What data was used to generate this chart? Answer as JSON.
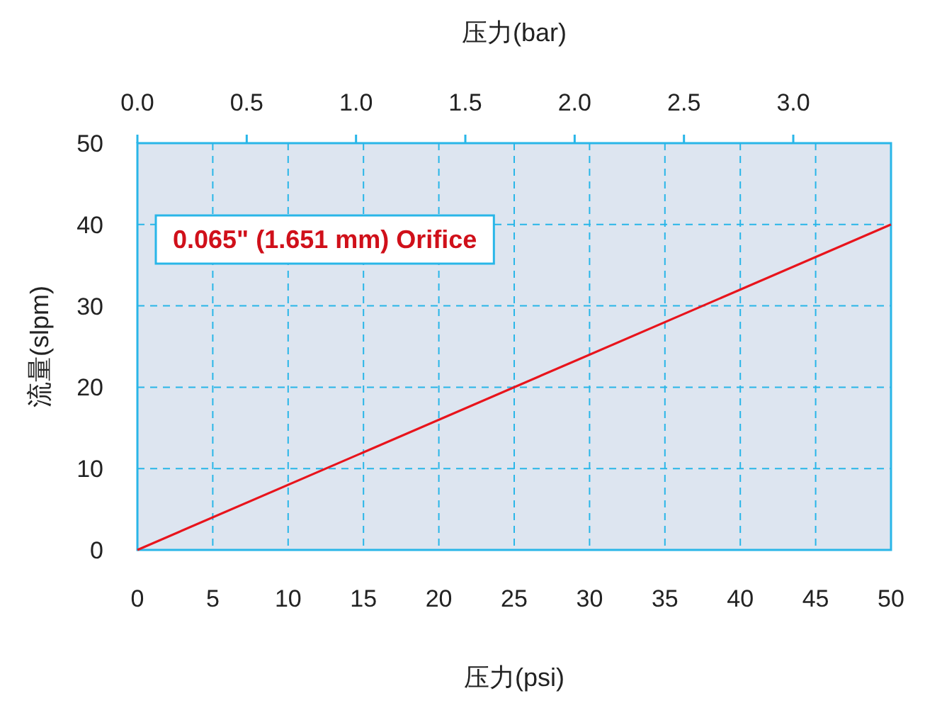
{
  "chart_data": {
    "type": "line",
    "xlabel": "压力(psi)",
    "ylabel": "流量(slpm)",
    "x2label": "压力(bar)",
    "annotations": [
      "0.065\" (1.651 mm) Orifice"
    ],
    "series": [
      {
        "color": "#e8141c",
        "x": [
          0,
          50
        ],
        "values": [
          0,
          40
        ]
      }
    ],
    "xlim": [
      0,
      50
    ],
    "xticks": [
      0,
      5,
      10,
      15,
      20,
      25,
      30,
      35,
      40,
      45,
      50
    ],
    "ylim": [
      0,
      50
    ],
    "yticks": [
      0,
      10,
      20,
      30,
      40,
      50
    ],
    "x2lim": [
      0,
      3.447
    ],
    "x2ticks": [
      {
        "value": 0,
        "label": "0.0"
      },
      {
        "value": 0.5,
        "label": "0.5"
      },
      {
        "value": 1,
        "label": "1.0"
      },
      {
        "value": 1.5,
        "label": "1.5"
      },
      {
        "value": 2,
        "label": "2.0"
      },
      {
        "value": 2.5,
        "label": "2.5"
      },
      {
        "value": 3,
        "label": "3.0"
      }
    ],
    "grid": true
  }
}
